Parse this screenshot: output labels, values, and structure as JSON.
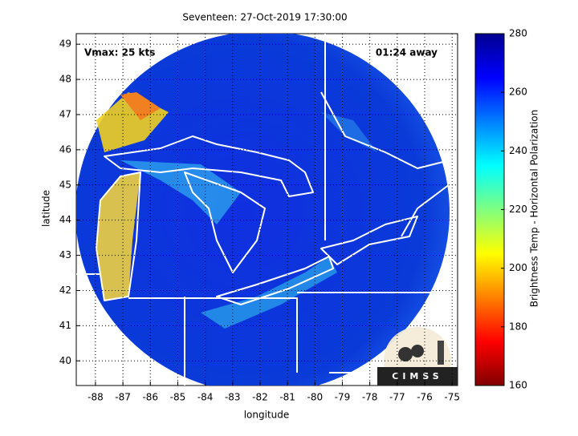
{
  "title": "Seventeen: 27-Oct-2019 17:30:00",
  "annotations": {
    "vmax": "Vmax: 25 kts",
    "time_away": "01:24 away"
  },
  "map": {
    "x_label": "longitude",
    "y_label": "latitude",
    "xlim": [
      -88.7,
      -74.8
    ],
    "ylim": [
      39.3,
      49.3
    ],
    "xticks": [
      -88,
      -87,
      -86,
      -85,
      -84,
      -83,
      -82,
      -81,
      -80,
      -79,
      -78,
      -77,
      -76,
      -75
    ],
    "yticks": [
      40,
      41,
      42,
      43,
      44,
      45,
      46,
      47,
      48,
      49
    ],
    "grid": true
  },
  "colorbar": {
    "label": "Brightness Temp - Horizontal Polarization",
    "lim": [
      160,
      280
    ],
    "ticks": [
      160,
      180,
      200,
      220,
      240,
      260,
      280
    ]
  },
  "logo": "CIMSS"
}
